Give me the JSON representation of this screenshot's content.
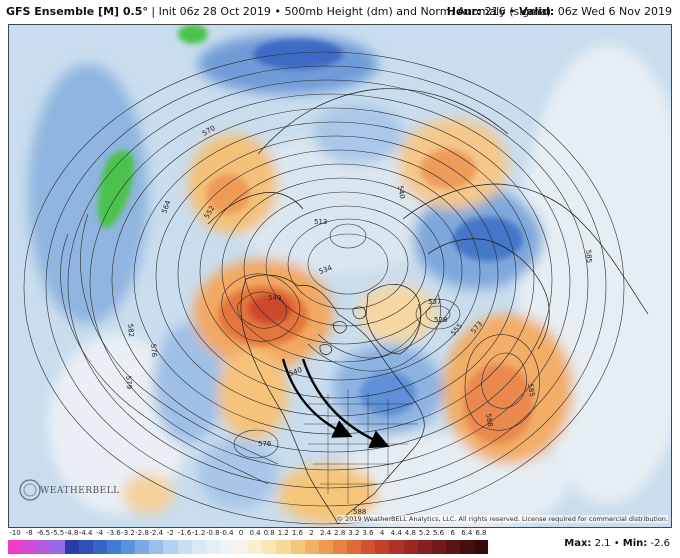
{
  "header": {
    "model": "GFS Ensemble [M] 0.5°",
    "init": "Init 06z 28 Oct 2019",
    "product": "500mb Height (dm) and Norm. Anomaly (sigma)",
    "hour_label": "Hour:",
    "hour": "216",
    "valid_label": "Valid:",
    "valid": "06z Wed 6 Nov 2019"
  },
  "contour_labels": [
    "570",
    "564",
    "552",
    "513",
    "534",
    "549",
    "540",
    "582",
    "576",
    "579",
    "528",
    "537",
    "555",
    "573",
    "585",
    "588",
    "576",
    "588",
    "540",
    "585"
  ],
  "colorscale": {
    "labels": [
      "-10",
      "-8",
      "-6.5",
      "-5.5",
      "-4.8",
      "-4.4",
      "-4",
      "-3.6",
      "-3.2",
      "-2.8",
      "-2.4",
      "-2",
      "-1.6",
      "-1.2",
      "-0.8",
      "-0.4",
      "0",
      "0.4",
      "0.8",
      "1.2",
      "1.6",
      "2",
      "2.4",
      "2.8",
      "3.2",
      "3.6",
      "4",
      "4.4",
      "4.8",
      "5.2",
      "5.6",
      "6",
      "6.4",
      "6.8"
    ],
    "colors": [
      "#f03cc8",
      "#d24bd2",
      "#b45adc",
      "#9669e6",
      "#2a3da6",
      "#2e50b8",
      "#3566c6",
      "#3f7cd2",
      "#5a93dc",
      "#7aa9e4",
      "#98bfea",
      "#b4d2ef",
      "#c8dff2",
      "#d8e8f4",
      "#e4eef6",
      "#edf3f8",
      "#f6f4ec",
      "#f8efcf",
      "#f8e6b4",
      "#f7d894",
      "#f5c67a",
      "#f2b062",
      "#ee9a50",
      "#e88244",
      "#de6a3c",
      "#d05232",
      "#c0402c",
      "#ae3228",
      "#9a2824",
      "#862020",
      "#701a1a",
      "#5a1414",
      "#480f10",
      "#360a0a"
    ]
  },
  "footer": {
    "max_label": "Max:",
    "max": "2.1",
    "min_label": "Min:",
    "min": "-2.6",
    "copyright": "© 2019 WeatherBELL Analytics, LLC. All rights reserved. License required for commercial distribution.",
    "logo": "WEATHERBELL"
  }
}
